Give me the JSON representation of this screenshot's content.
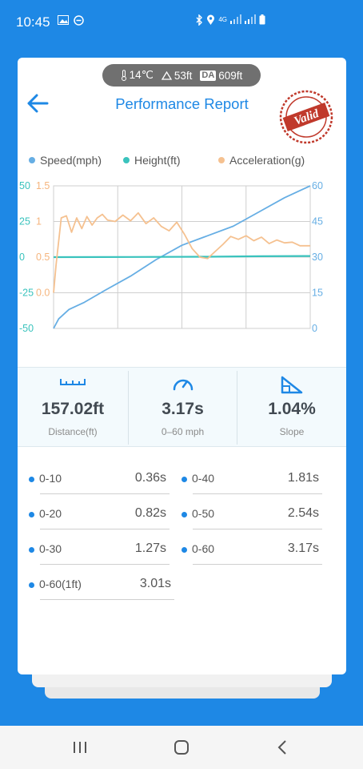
{
  "status": {
    "time": "10:45",
    "network": "4G"
  },
  "header": {
    "title": "Performance Report",
    "stamp_text": "Valid"
  },
  "env": {
    "temperature": "14℃",
    "elevation": "53ft",
    "da_label": "DA",
    "density_altitude": "609ft"
  },
  "legend": [
    {
      "label": "Speed(mph)",
      "color": "#66aee4"
    },
    {
      "label": "Height(ft)",
      "color": "#3ac3bd"
    },
    {
      "label": "Acceleration(g)",
      "color": "#f5c190"
    }
  ],
  "chart_data": {
    "type": "line",
    "left_axis_height": {
      "ticks": [
        "50",
        "25",
        "0",
        "-25",
        "-50"
      ],
      "color": "#3ac3bd"
    },
    "left_axis_accel": {
      "ticks": [
        "1.5",
        "1",
        "0.5",
        "0.0"
      ],
      "color": "#f5b57e"
    },
    "right_axis_speed": {
      "ticks": [
        "60",
        "45",
        "30",
        "15",
        "0"
      ],
      "color": "#66aee4"
    },
    "grid": true,
    "series": [
      {
        "name": "Speed(mph)",
        "axis": "speed",
        "x": [
          0,
          0.02,
          0.06,
          0.12,
          0.2,
          0.3,
          0.4,
          0.5,
          0.6,
          0.7,
          0.8,
          0.9,
          1.0
        ],
        "values": [
          0,
          4,
          8,
          11,
          16,
          22,
          29,
          35,
          39,
          43,
          49,
          55,
          60
        ]
      },
      {
        "name": "Height(ft)",
        "axis": "height",
        "x": [
          0,
          0.3,
          0.6,
          0.8,
          1.0
        ],
        "values": [
          0,
          0.1,
          0.3,
          0.6,
          0.8
        ]
      },
      {
        "name": "Acceleration(g)",
        "axis": "accel",
        "x": [
          0,
          0.01,
          0.03,
          0.05,
          0.07,
          0.09,
          0.11,
          0.13,
          0.15,
          0.17,
          0.19,
          0.21,
          0.24,
          0.27,
          0.3,
          0.33,
          0.36,
          0.39,
          0.42,
          0.45,
          0.48,
          0.51,
          0.54,
          0.57,
          0.6,
          0.63,
          0.66,
          0.69,
          0.72,
          0.75,
          0.78,
          0.81,
          0.84,
          0.87,
          0.9,
          0.93,
          0.96,
          1.0
        ],
        "values": [
          0.0,
          0.4,
          1.05,
          1.08,
          0.85,
          1.05,
          0.9,
          1.07,
          0.95,
          1.05,
          1.1,
          1.02,
          1.0,
          1.09,
          1.01,
          1.12,
          0.97,
          1.05,
          0.93,
          0.87,
          0.99,
          0.82,
          0.62,
          0.5,
          0.48,
          0.58,
          0.68,
          0.79,
          0.75,
          0.8,
          0.73,
          0.78,
          0.69,
          0.74,
          0.7,
          0.71,
          0.66,
          0.66
        ]
      }
    ]
  },
  "stats": [
    {
      "value": "157.02ft",
      "label": "Distance(ft)",
      "icon": "ruler-icon"
    },
    {
      "value": "3.17s",
      "label": "0–60 mph",
      "icon": "speedometer-icon"
    },
    {
      "value": "1.04%",
      "label": "Slope",
      "icon": "slope-icon"
    }
  ],
  "splits": [
    {
      "name": "0-10",
      "time": "0.36s"
    },
    {
      "name": "0-40",
      "time": "1.81s"
    },
    {
      "name": "0-20",
      "time": "0.82s"
    },
    {
      "name": "0-50",
      "time": "2.54s"
    },
    {
      "name": "0-30",
      "time": "1.27s"
    },
    {
      "name": "0-60",
      "time": "3.17s"
    },
    {
      "name": "0-60(1ft)",
      "time": "3.01s"
    }
  ]
}
